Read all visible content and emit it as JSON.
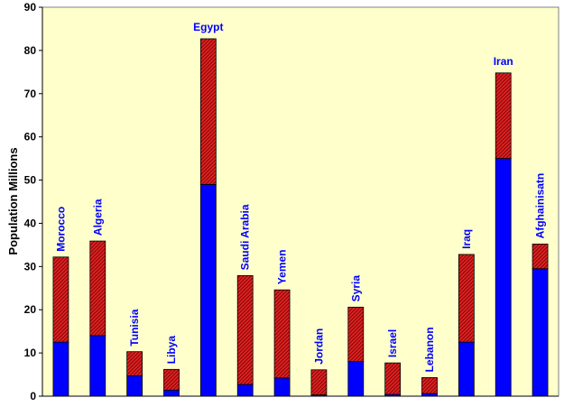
{
  "chart_data": {
    "type": "bar",
    "stacked": true,
    "ylabel": "Population  Millions",
    "ylim": [
      0,
      90
    ],
    "yticks": [
      0,
      10,
      20,
      30,
      40,
      50,
      60,
      70,
      80,
      90
    ],
    "grid": false,
    "categories": [
      "Morocco",
      "Algeria",
      "Tunisia",
      "Libya",
      "Egypt",
      "Saudi Arabia",
      "Yemen",
      "Jordan",
      "Syria",
      "Israel",
      "Lebanon",
      "Iraq",
      "Iran",
      "Afghainisatn"
    ],
    "series": [
      {
        "values": [
          12.5,
          14,
          4.7,
          1.4,
          49,
          2.7,
          4.2,
          0.3,
          8,
          0.4,
          0.6,
          12.5,
          55,
          29.5
        ]
      },
      {
        "values": [
          19.7,
          21.9,
          5.6,
          4.8,
          33.7,
          25.2,
          20.4,
          5.8,
          12.6,
          7.3,
          3.7,
          20.3,
          19.8,
          5.7
        ]
      }
    ]
  },
  "colors": {
    "plot_background": "#ffffcc",
    "lower_segment": "#0000ff",
    "upper_segment": "#dd2222",
    "upper_hatch": "#770000",
    "label": "#0000ff",
    "axis": "#000000"
  }
}
